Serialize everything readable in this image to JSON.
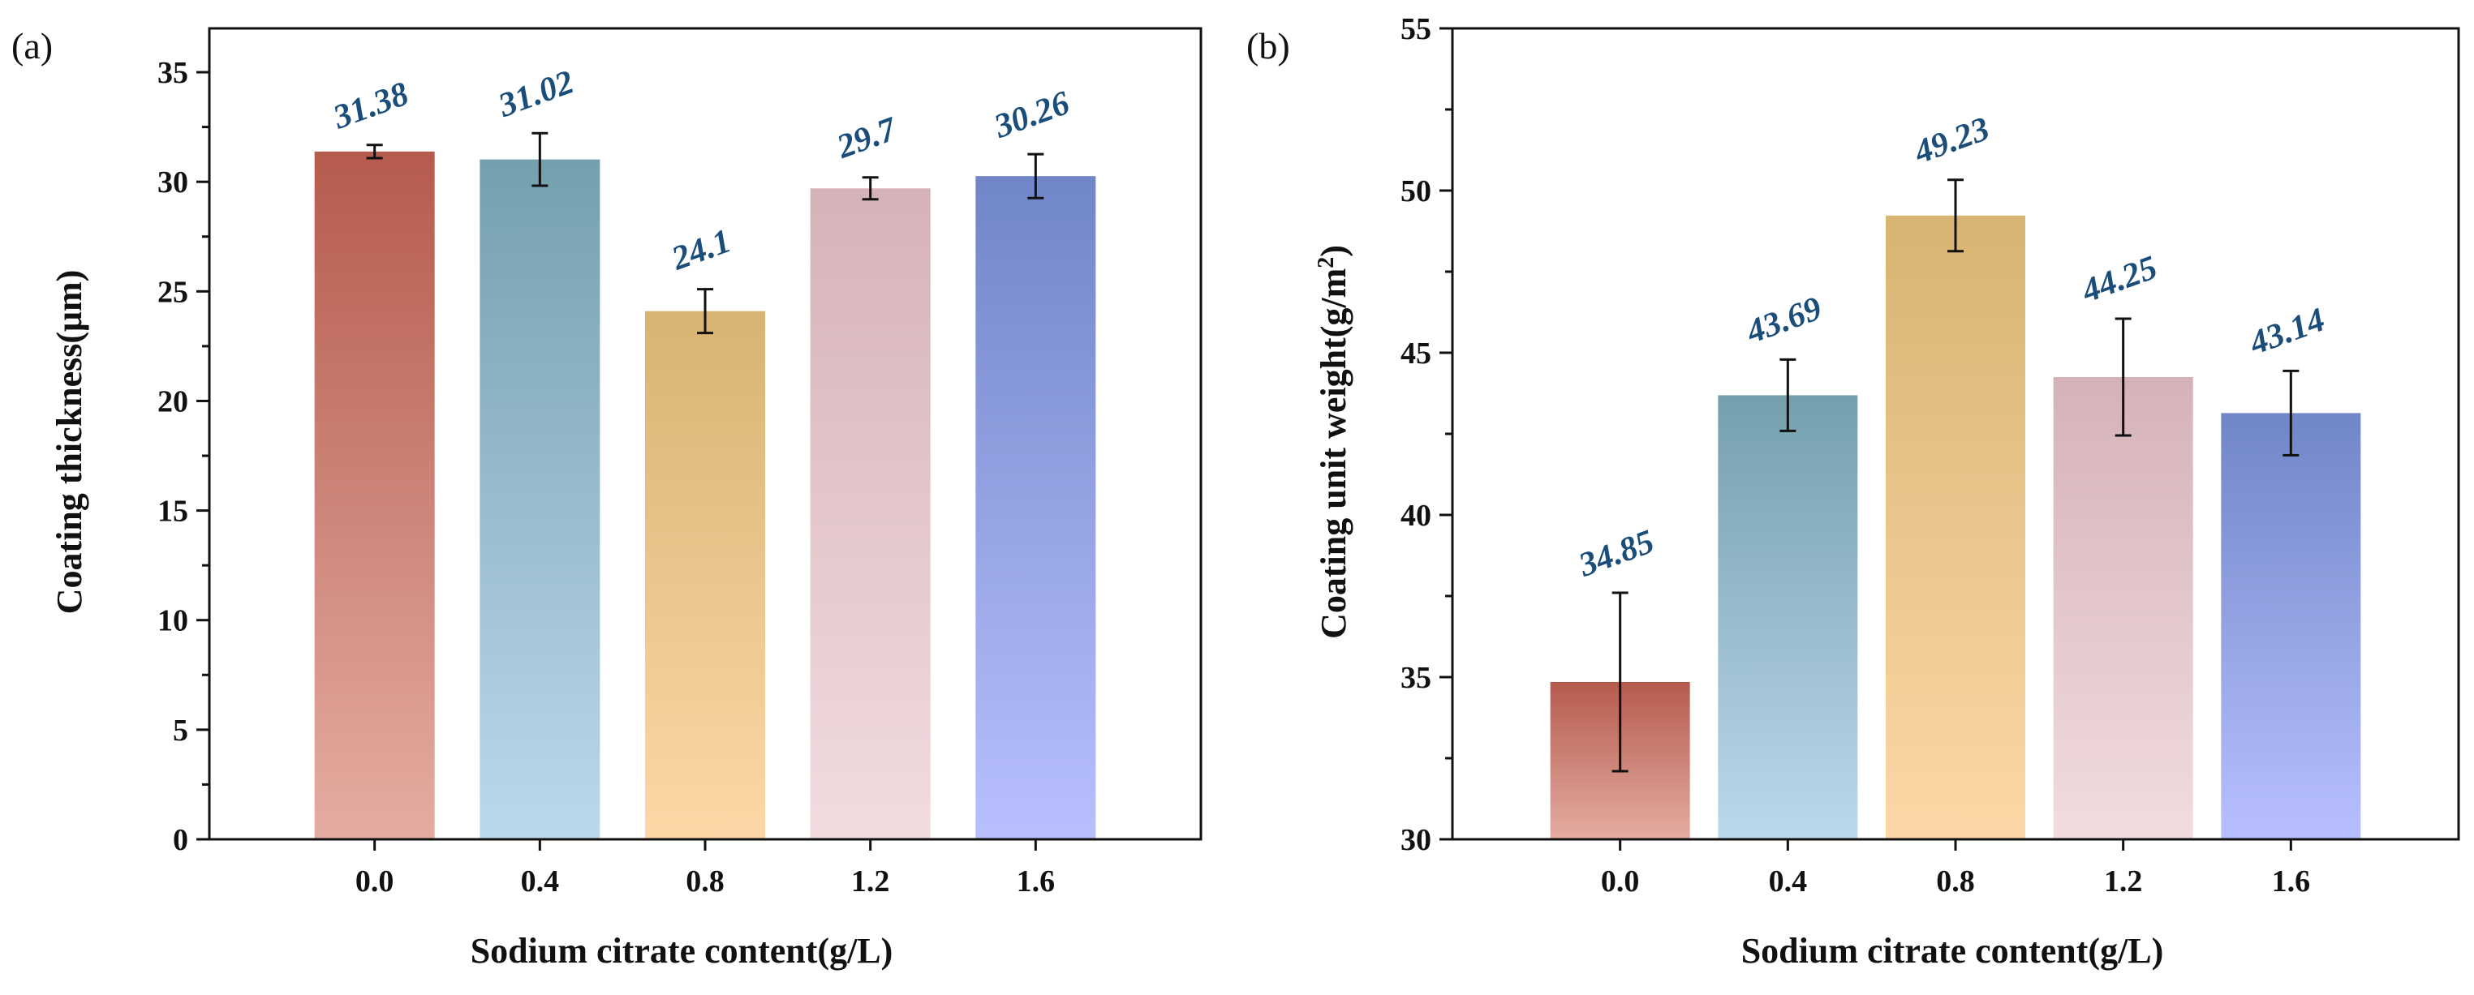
{
  "chart_data": [
    {
      "type": "bar",
      "panel_label": "(a)",
      "categories": [
        "0.0",
        "0.4",
        "0.8",
        "1.2",
        "1.6"
      ],
      "values": [
        31.38,
        31.02,
        24.1,
        29.7,
        30.26
      ],
      "value_labels": [
        "31.38",
        "31.02",
        "24.1",
        "29.7",
        "30.26"
      ],
      "errors": [
        0.3,
        1.2,
        1.0,
        0.5,
        1.0
      ],
      "title": "",
      "xlabel": "Sodium citrate content(g/L)",
      "ylabel": "Coating thickness(μm)",
      "ylim": [
        0,
        37
      ],
      "yticks": [
        0,
        5,
        10,
        15,
        20,
        25,
        30,
        35
      ],
      "ytick_labels": [
        "0",
        "5",
        "10",
        "15",
        "20",
        "25",
        "30",
        "35"
      ],
      "grid": false,
      "colors": [
        {
          "top": "#b55b4e",
          "bottom": "#e5aca1"
        },
        {
          "top": "#74a0ae",
          "bottom": "#bcd8ec"
        },
        {
          "top": "#d7b471",
          "bottom": "#ffd6a7"
        },
        {
          "top": "#d5b2b8",
          "bottom": "#f1dce0"
        },
        {
          "top": "#7086c8",
          "bottom": "#b8bfff"
        }
      ]
    },
    {
      "type": "bar",
      "panel_label": "(b)",
      "categories": [
        "0.0",
        "0.4",
        "0.8",
        "1.2",
        "1.6"
      ],
      "values": [
        34.85,
        43.69,
        49.23,
        44.25,
        43.14
      ],
      "value_labels": [
        "34.85",
        "43.69",
        "49.23",
        "44.25",
        "43.14"
      ],
      "errors": [
        2.75,
        1.1,
        1.1,
        1.8,
        1.3
      ],
      "title": "",
      "xlabel": "Sodium citrate content(g/L)",
      "ylabel": "Coating unit weight(g/m",
      "ylabel_superscript": "2",
      "ylabel_suffix": ")",
      "ylim": [
        30,
        55
      ],
      "yticks": [
        30,
        35,
        40,
        45,
        50,
        55
      ],
      "ytick_labels": [
        "30",
        "35",
        "40",
        "45",
        "50",
        "55"
      ],
      "grid": false,
      "colors": [
        {
          "top": "#b55b4e",
          "bottom": "#e5aca1"
        },
        {
          "top": "#74a0ae",
          "bottom": "#bcd8ec"
        },
        {
          "top": "#d7b471",
          "bottom": "#ffd6a7"
        },
        {
          "top": "#d5b2b8",
          "bottom": "#f1dce0"
        },
        {
          "top": "#7086c8",
          "bottom": "#b8bfff"
        }
      ]
    }
  ]
}
